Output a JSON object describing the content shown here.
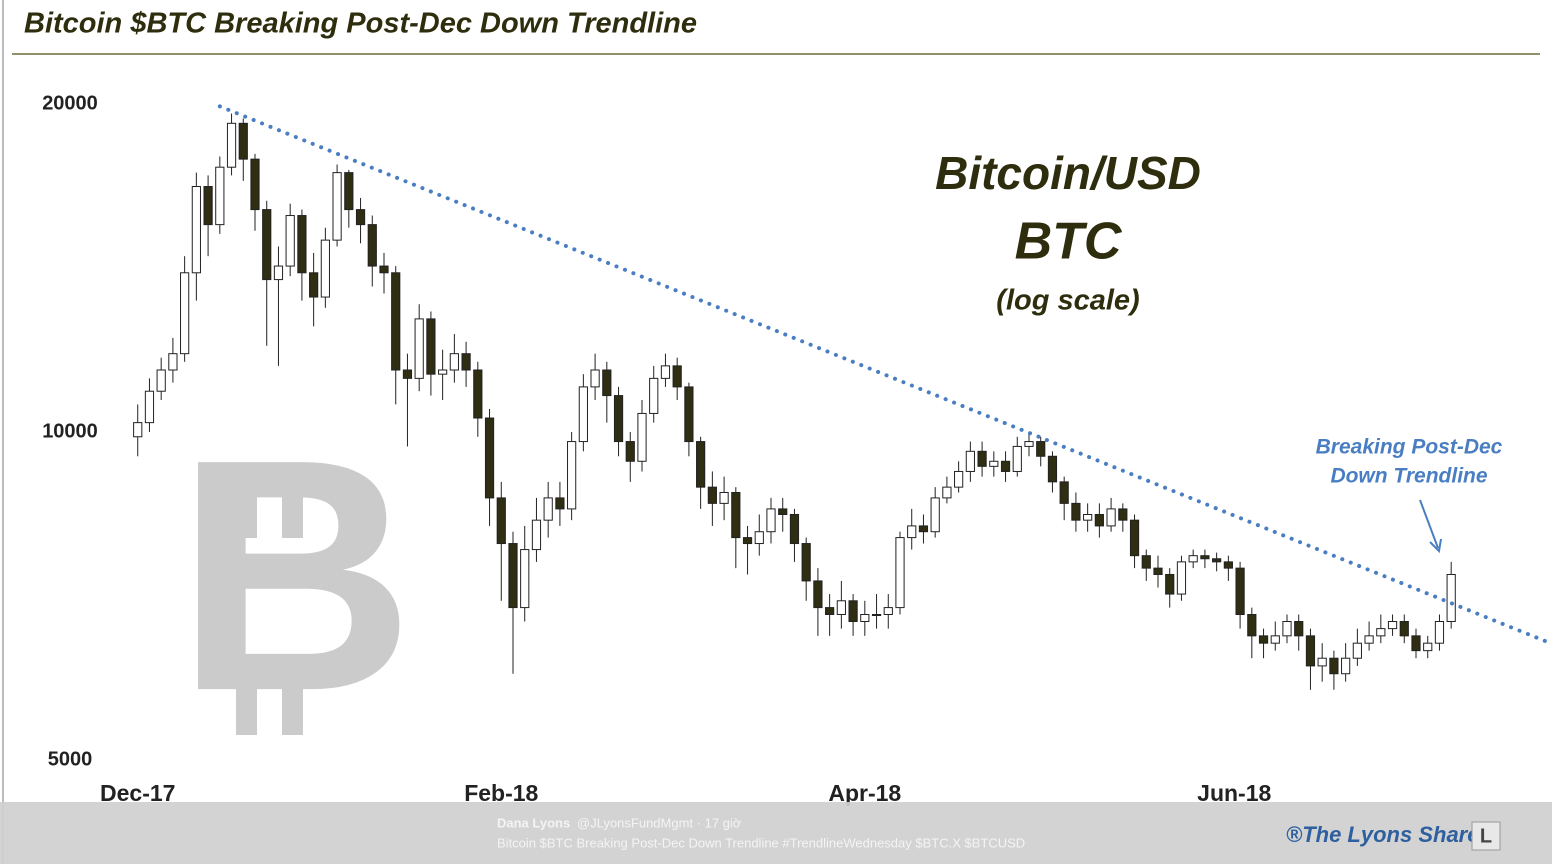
{
  "chart_data": {
    "type": "candlestick",
    "title": "Bitcoin $BTC Breaking Post-Dec Down Trendline",
    "overlay_text": [
      "Bitcoin/USD",
      "BTC",
      "(log scale)"
    ],
    "annotation": [
      "Breaking Post-Dec",
      "Down Trendline"
    ],
    "log_scale": true,
    "grid": false,
    "up_color": "#ffffff",
    "down_color": "#2f2d12",
    "xlim": [
      -2,
      240
    ],
    "xticks": [
      {
        "value": 0,
        "label": "Dec-17"
      },
      {
        "value": 62,
        "label": "Feb-18"
      },
      {
        "value": 124,
        "label": "Apr-18"
      },
      {
        "value": 187,
        "label": "Jun-18"
      }
    ],
    "ylim": [
      5000,
      20000
    ],
    "yticks": [
      5000,
      10000,
      20000
    ],
    "x": [
      0,
      2,
      4,
      6,
      8,
      10,
      12,
      14,
      16,
      18,
      20,
      22,
      24,
      26,
      28,
      30,
      32,
      34,
      36,
      38,
      40,
      42,
      44,
      46,
      48,
      50,
      52,
      54,
      56,
      58,
      60,
      62,
      64,
      66,
      68,
      70,
      72,
      74,
      76,
      78,
      80,
      82,
      84,
      86,
      88,
      90,
      92,
      94,
      96,
      98,
      100,
      102,
      104,
      106,
      108,
      110,
      112,
      114,
      116,
      118,
      120,
      122,
      124,
      126,
      128,
      130,
      132,
      134,
      136,
      138,
      140,
      142,
      144,
      146,
      148,
      150,
      152,
      154,
      156,
      158,
      160,
      162,
      164,
      166,
      168,
      170,
      172,
      174,
      176,
      178,
      180,
      182,
      184,
      186,
      188,
      190,
      192,
      194,
      196,
      198,
      200,
      202,
      204,
      206,
      208,
      210,
      212,
      214,
      216,
      218,
      220,
      222,
      224
    ],
    "open": [
      9900,
      10200,
      10900,
      11400,
      11800,
      14000,
      16800,
      15500,
      17500,
      19200,
      17800,
      16000,
      13800,
      14200,
      15800,
      14000,
      13300,
      15000,
      17300,
      16000,
      15500,
      14200,
      14000,
      11400,
      11200,
      12700,
      11300,
      11400,
      11800,
      11400,
      10300,
      8700,
      7900,
      6900,
      7800,
      8300,
      8700,
      8500,
      9800,
      11000,
      11400,
      10800,
      9800,
      9400,
      10400,
      11200,
      11500,
      11000,
      9800,
      8900,
      8600,
      8800,
      8000,
      7900,
      8100,
      8500,
      8400,
      7900,
      7300,
      6900,
      6800,
      7000,
      6700,
      6800,
      6800,
      6900,
      8000,
      8200,
      8100,
      8700,
      8900,
      9200,
      9600,
      9300,
      9400,
      9200,
      9700,
      9800,
      9500,
      9000,
      8600,
      8300,
      8400,
      8200,
      8500,
      8300,
      7700,
      7500,
      7400,
      7100,
      7600,
      7700,
      7650,
      7600,
      7500,
      6800,
      6500,
      6400,
      6500,
      6700,
      6500,
      6100,
      6200,
      6000,
      6200,
      6400,
      6500,
      6600,
      6700,
      6500,
      6300,
      6400,
      6700
    ],
    "high": [
      10600,
      11200,
      11700,
      12200,
      14500,
      17300,
      17200,
      17900,
      19600,
      19400,
      18000,
      16300,
      14800,
      16200,
      16000,
      14600,
      15400,
      17600,
      17400,
      16400,
      15800,
      14600,
      14200,
      11800,
      13100,
      12900,
      11900,
      12300,
      12100,
      11600,
      10500,
      9000,
      8100,
      8200,
      8700,
      9000,
      9000,
      10000,
      11300,
      11800,
      11600,
      11000,
      10000,
      10700,
      11500,
      11800,
      11700,
      11100,
      9900,
      9200,
      9100,
      8900,
      8200,
      8400,
      8700,
      8700,
      8500,
      8000,
      7500,
      7100,
      7300,
      7100,
      7000,
      7100,
      7100,
      8100,
      8500,
      8400,
      8900,
      9100,
      9400,
      9800,
      9800,
      9600,
      9600,
      9900,
      10000,
      9900,
      9600,
      9100,
      8800,
      8600,
      8600,
      8700,
      8600,
      8400,
      7800,
      7700,
      7500,
      7700,
      7800,
      7800,
      7750,
      7700,
      7600,
      6900,
      6600,
      6700,
      6800,
      6800,
      6600,
      6400,
      6300,
      6400,
      6600,
      6700,
      6800,
      6800,
      6800,
      6600,
      6500,
      6800,
      7600
    ],
    "low": [
      9500,
      10000,
      10700,
      11100,
      11600,
      13200,
      14500,
      15200,
      17200,
      17000,
      15300,
      12000,
      11500,
      13900,
      13200,
      12500,
      13000,
      14800,
      15400,
      14900,
      13600,
      13400,
      10600,
      9700,
      10900,
      10800,
      10700,
      11100,
      11000,
      9900,
      8200,
      7000,
      6000,
      6700,
      7600,
      8000,
      8200,
      8300,
      9600,
      10700,
      10200,
      9500,
      9000,
      9200,
      10200,
      11000,
      10700,
      9500,
      8500,
      8200,
      8300,
      7500,
      7400,
      7700,
      7900,
      8100,
      7600,
      7000,
      6500,
      6500,
      6600,
      6500,
      6500,
      6600,
      6600,
      6800,
      7800,
      7900,
      8000,
      8600,
      8800,
      9000,
      9100,
      9100,
      9000,
      9100,
      9500,
      9300,
      8800,
      8300,
      8100,
      8100,
      8000,
      8100,
      8100,
      7500,
      7300,
      7200,
      6900,
      7000,
      7500,
      7500,
      7450,
      7300,
      6600,
      6200,
      6200,
      6300,
      6400,
      6300,
      5800,
      5900,
      5800,
      5900,
      6100,
      6300,
      6400,
      6500,
      6400,
      6200,
      6200,
      6300,
      6600
    ],
    "close": [
      10200,
      10900,
      11400,
      11800,
      14000,
      16800,
      15500,
      17500,
      19200,
      17800,
      16000,
      13800,
      14200,
      15800,
      14000,
      13300,
      15000,
      17300,
      16000,
      15500,
      14200,
      14000,
      11400,
      11200,
      12700,
      11300,
      11400,
      11800,
      11400,
      10300,
      8700,
      7900,
      6900,
      7800,
      8300,
      8700,
      8500,
      9800,
      11000,
      11400,
      10800,
      9800,
      9400,
      10400,
      11200,
      11500,
      11000,
      9800,
      8900,
      8600,
      8800,
      8000,
      7900,
      8100,
      8500,
      8400,
      7900,
      7300,
      6900,
      6800,
      7000,
      6700,
      6800,
      6800,
      6900,
      8000,
      8200,
      8100,
      8700,
      8900,
      9200,
      9600,
      9300,
      9400,
      9200,
      9700,
      9800,
      9500,
      9000,
      8600,
      8300,
      8400,
      8200,
      8500,
      8300,
      7700,
      7500,
      7400,
      7100,
      7600,
      7700,
      7650,
      7600,
      7500,
      6800,
      6500,
      6400,
      6500,
      6700,
      6500,
      6100,
      6200,
      6000,
      6200,
      6400,
      6500,
      6600,
      6700,
      6500,
      6300,
      6400,
      6700,
      7400
    ],
    "trendline": {
      "color": "#4a7ec2",
      "x": [
        14,
        240
      ],
      "y": [
        19900,
        6430
      ]
    }
  },
  "footer": {
    "author": "Dana Lyons",
    "handle": "@JLyonsFundMgmt · 17 giờ",
    "tweet": "Bitcoin $BTC Breaking Post-Dec Down Trendline #TrendlineWednesday $BTC.X $BTCUSD",
    "brand": "®The Lyons Share",
    "brand_logo": "L"
  }
}
